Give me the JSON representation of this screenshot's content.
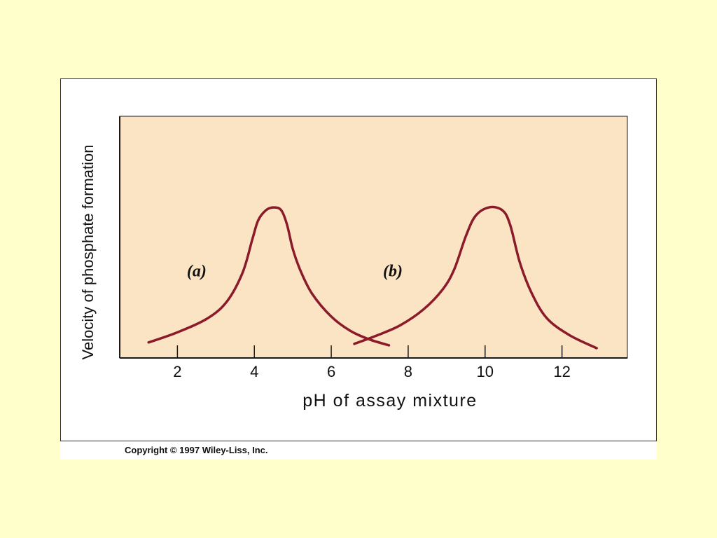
{
  "colors": {
    "background": "#ffffcc",
    "plot_background": "#fbe4c4",
    "curve": "#8b1a2b",
    "axis": "#1a1a1a"
  },
  "copyright": "Copyright © 1997 Wiley-Liss, Inc.",
  "chart_data": {
    "type": "line",
    "title": "",
    "xlabel": "pH of assay mixture",
    "ylabel": "Velocity of phosphate formation",
    "xlim": [
      0.5,
      13.7
    ],
    "ylim": [
      0,
      100
    ],
    "xticks": [
      2,
      4,
      6,
      8,
      10,
      12
    ],
    "y_tick_labels": false,
    "grid": false,
    "legend": "none",
    "series": [
      {
        "name": "(a)",
        "label": "(a)",
        "label_at": [
          2.5,
          50
        ],
        "x": [
          1.25,
          2.0,
          2.8,
          3.3,
          3.7,
          3.95,
          4.1,
          4.3,
          4.5,
          4.7,
          4.85,
          5.0,
          5.2,
          5.5,
          6.0,
          6.5,
          7.0,
          7.5
        ],
        "y": [
          4,
          11,
          21,
          33,
          53,
          76,
          89,
          96,
          98,
          96,
          86,
          69,
          54,
          38,
          22,
          12,
          6,
          2
        ]
      },
      {
        "name": "(b)",
        "label": "(b)",
        "label_at": [
          7.6,
          50
        ],
        "x": [
          6.6,
          7.2,
          7.8,
          8.4,
          8.9,
          9.2,
          9.5,
          9.75,
          10.1,
          10.45,
          10.65,
          10.9,
          11.2,
          11.6,
          12.2,
          12.9
        ],
        "y": [
          3,
          9,
          16,
          27,
          41,
          55,
          78,
          92,
          98,
          96,
          86,
          60,
          39,
          21,
          9,
          0
        ]
      }
    ]
  }
}
